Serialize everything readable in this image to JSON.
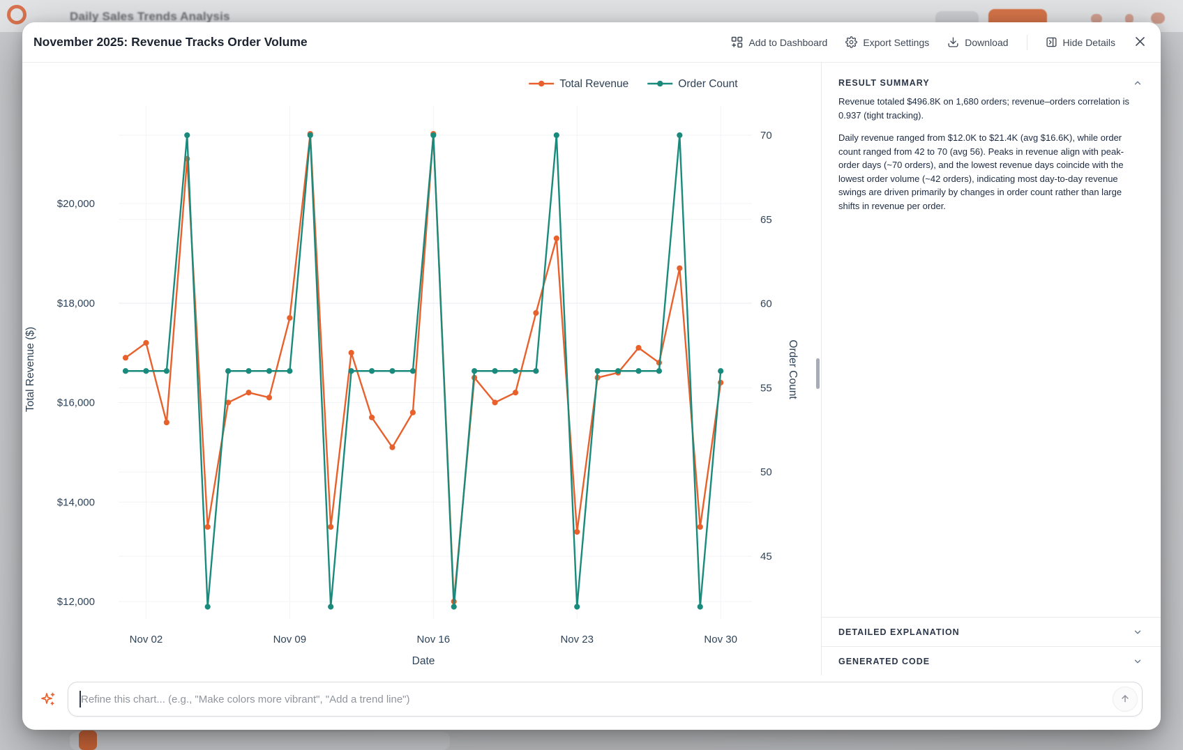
{
  "backdrop": {
    "app_title": "Daily Sales Trends Analysis"
  },
  "modal": {
    "title": "November 2025: Revenue Tracks Order Volume",
    "actions": {
      "add_to_dashboard": "Add to Dashboard",
      "export_settings": "Export Settings",
      "download": "Download",
      "hide_details": "Hide Details"
    }
  },
  "chart_data": {
    "type": "line",
    "title": "November 2025: Revenue Tracks Order Volume",
    "xlabel": "Date",
    "ylabel_left": "Total Revenue ($)",
    "ylabel_right": "Order Count",
    "grid": true,
    "legend_position": "top-right",
    "x": [
      "Nov 01",
      "Nov 02",
      "Nov 03",
      "Nov 04",
      "Nov 05",
      "Nov 06",
      "Nov 07",
      "Nov 08",
      "Nov 09",
      "Nov 10",
      "Nov 11",
      "Nov 12",
      "Nov 13",
      "Nov 14",
      "Nov 15",
      "Nov 16",
      "Nov 17",
      "Nov 18",
      "Nov 19",
      "Nov 20",
      "Nov 21",
      "Nov 22",
      "Nov 23",
      "Nov 24",
      "Nov 25",
      "Nov 26",
      "Nov 27",
      "Nov 28",
      "Nov 29",
      "Nov 30"
    ],
    "series": [
      {
        "name": "Total Revenue",
        "axis": "left",
        "color": "#E8612C",
        "values": [
          16900,
          17200,
          15600,
          20900,
          13500,
          16000,
          16200,
          16100,
          17700,
          21400,
          13500,
          17000,
          15700,
          15100,
          15800,
          21400,
          12000,
          16500,
          16000,
          16200,
          17800,
          19300,
          13400,
          16500,
          16600,
          17100,
          16800,
          18700,
          13500,
          16400
        ]
      },
      {
        "name": "Order Count",
        "axis": "right",
        "color": "#1A8A7D",
        "values": [
          56,
          56,
          56,
          70,
          42,
          56,
          56,
          56,
          56,
          70,
          42,
          56,
          56,
          56,
          56,
          70,
          42,
          56,
          56,
          56,
          56,
          70,
          42,
          56,
          56,
          56,
          56,
          70,
          42,
          56
        ]
      }
    ],
    "left_ticks": [
      "$12,000",
      "$14,000",
      "$16,000",
      "$18,000",
      "$20,000"
    ],
    "left_tick_values": [
      12000,
      14000,
      16000,
      18000,
      20000
    ],
    "left_axis_range": [
      11740,
      21960
    ],
    "right_ticks": [
      45,
      50,
      55,
      60,
      65,
      70
    ],
    "right_axis_range": [
      41.5,
      70.8
    ],
    "x_tick_labels": [
      "Nov 02",
      "Nov 09",
      "Nov 16",
      "Nov 23",
      "Nov 30"
    ],
    "x_tick_indices": [
      1,
      8,
      15,
      22,
      29
    ]
  },
  "panel": {
    "result_summary": {
      "title": "RESULT SUMMARY",
      "paragraphs": [
        "Revenue totaled $496.8K on 1,680 orders; revenue–orders correlation is 0.937 (tight tracking).",
        "Daily revenue ranged from $12.0K to $21.4K (avg $16.6K), while order count ranged from 42 to 70 (avg 56). Peaks in revenue align with peak-order days (~70 orders), and the lowest revenue days coincide with the lowest order volume (~42 orders), indicating most day-to-day revenue swings are driven primarily by changes in order count rather than large shifts in revenue per order."
      ]
    },
    "sections": [
      {
        "title": "DETAILED EXPLANATION"
      },
      {
        "title": "GENERATED CODE"
      }
    ]
  },
  "footer": {
    "placeholder": "Refine this chart... (e.g., \"Make colors more vibrant\", \"Add a trend line\")"
  }
}
